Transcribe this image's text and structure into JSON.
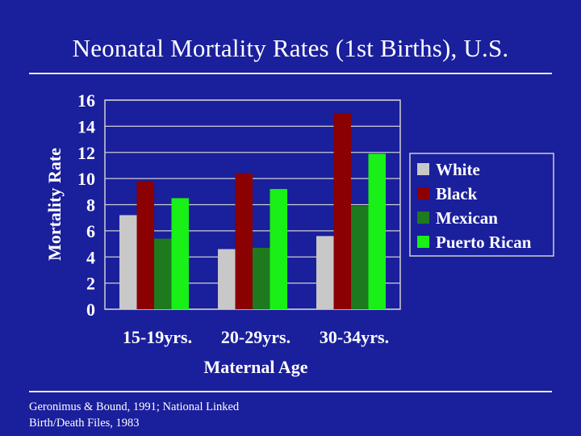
{
  "slide": {
    "title": "Neonatal Mortality Rates (1st Births), U.S.",
    "source_line1": "Geronimus & Bound, 1991; National Linked",
    "source_line2": "Birth/Death Files, 1983"
  },
  "colors": {
    "background": "#1a1f9c",
    "text": "#ffffff",
    "axis_text": "#ffffff"
  },
  "chart_data": {
    "type": "bar",
    "title": "",
    "xlabel": "Maternal Age",
    "ylabel": "Mortality Rate",
    "categories": [
      "15-19yrs.",
      "20-29yrs.",
      "30-34yrs."
    ],
    "ylim": [
      0,
      16
    ],
    "yticks": [
      0,
      2,
      4,
      6,
      8,
      10,
      12,
      14,
      16
    ],
    "grid": true,
    "legend_position": "right",
    "series": [
      {
        "name": "White",
        "color": "#c8c8c8",
        "values": [
          7.2,
          4.6,
          5.6
        ]
      },
      {
        "name": "Black",
        "color": "#8b0000",
        "values": [
          9.8,
          10.4,
          15.0
        ]
      },
      {
        "name": "Mexican",
        "color": "#1e7a1e",
        "values": [
          5.4,
          4.7,
          7.9
        ]
      },
      {
        "name": "Puerto Rican",
        "color": "#18f018",
        "values": [
          8.5,
          9.2,
          11.9
        ]
      }
    ]
  }
}
